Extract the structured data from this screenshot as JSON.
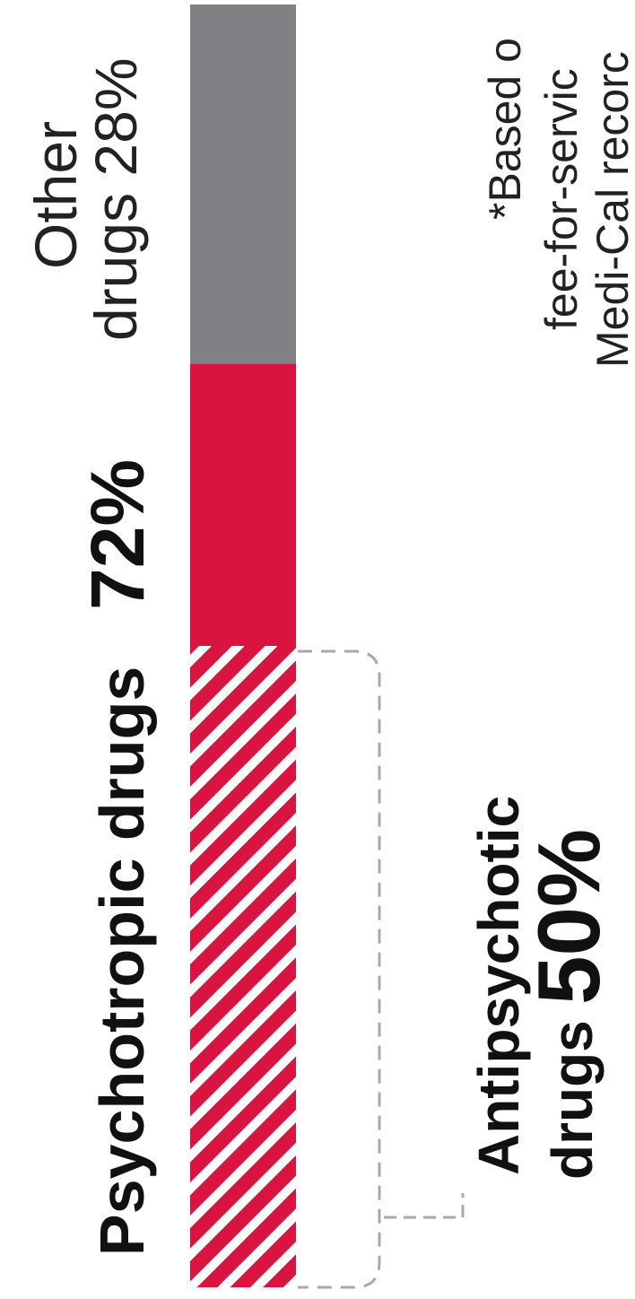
{
  "chart_data": {
    "type": "bar",
    "orientation": "stacked-vertical",
    "segments": [
      {
        "label": "Psychotropic drugs",
        "value": 72,
        "value_text": "72%",
        "color": "#d9143f"
      },
      {
        "label": "Other drugs",
        "value": 28,
        "value_text": "28%",
        "color": "#808085"
      }
    ],
    "sub_segment": {
      "label": "Antipsychotic drugs",
      "value": 50,
      "value_text": "50%",
      "part_of": "Psychotropic drugs",
      "pattern": "diagonal-stripes",
      "color": "#d9143f"
    },
    "footnote": [
      "*Based o",
      "fee-for-servic",
      "Medi-Cal recorc"
    ]
  },
  "labels": {
    "psychotropic": "Psychotropic drugs",
    "psychotropic_value": "72%",
    "other_line1": "Other",
    "other_line2": "drugs 28%",
    "antipsychotic_line1": "Antipsychotic",
    "antipsychotic_word": "drugs",
    "antipsychotic_value": "50%",
    "footnote_1": "*Based o",
    "footnote_2": "fee-for-servic",
    "footnote_3": "Medi-Cal recorc"
  }
}
